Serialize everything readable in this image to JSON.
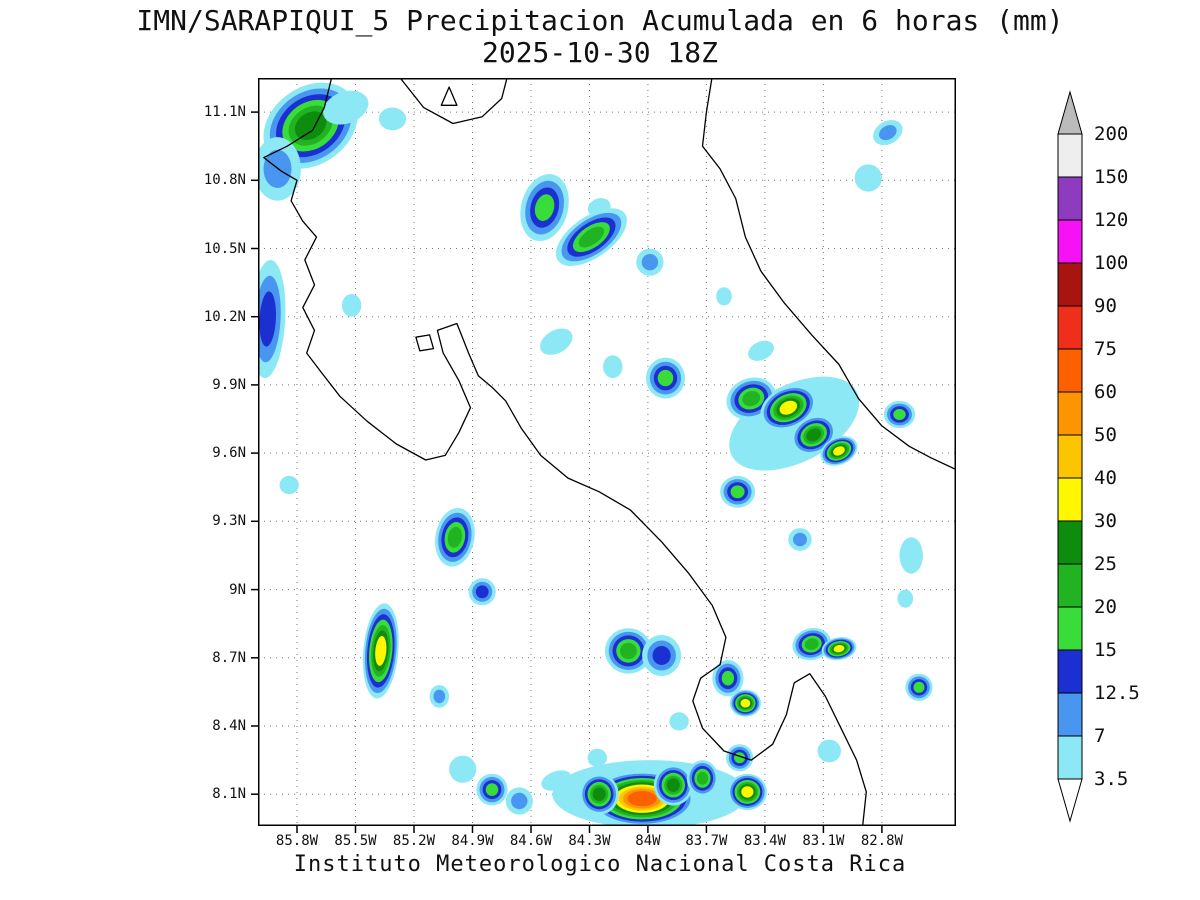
{
  "title": {
    "line1": "IMN/SARAPIQUI_5 Precipitacion Acumulada en 6 horas (mm)",
    "line2": "2025-10-30 18Z"
  },
  "footer": "Instituto Meteorologico Nacional Costa Rica",
  "colorbar": {
    "boundary_labels": [
      "200",
      "150",
      "120",
      "100",
      "90",
      "75",
      "60",
      "50",
      "40",
      "30",
      "25",
      "20",
      "15",
      "12.5",
      "7",
      "3.5"
    ],
    "above_color": "#bbbbbb",
    "below_color": "#ffffff"
  },
  "chart_data": {
    "type": "heatmap",
    "title": "IMN/SARAPIQUI_5 Precipitacion Acumulada en 6 horas (mm)",
    "subtitle": "2025-10-30 18Z",
    "units": "mm",
    "region": "Costa Rica",
    "axes": {
      "lat_labels": [
        "11.1N",
        "10.8N",
        "10.5N",
        "10.2N",
        "9.9N",
        "9.6N",
        "9.3N",
        "9N",
        "8.7N",
        "8.4N",
        "8.1N"
      ],
      "lat_values": [
        11.1,
        10.8,
        10.5,
        10.2,
        9.9,
        9.6,
        9.3,
        9.0,
        8.7,
        8.4,
        8.1
      ],
      "lon_labels": [
        "85.8W",
        "85.5W",
        "85.2W",
        "84.9W",
        "84.6W",
        "84.3W",
        "84W",
        "83.7W",
        "83.4W",
        "83.1W",
        "82.8W"
      ],
      "lon_values": [
        85.8,
        85.5,
        85.2,
        84.9,
        84.6,
        84.3,
        84.0,
        83.7,
        83.4,
        83.1,
        82.8
      ],
      "lon_range": [
        86.0,
        82.42
      ],
      "lat_range": [
        7.96,
        11.25
      ],
      "grid": "dotted"
    },
    "levels": [
      3.5,
      7,
      12.5,
      15,
      20,
      25,
      30,
      40,
      50,
      60,
      75,
      90,
      100,
      120,
      150,
      200
    ],
    "level_colors": [
      "#8ce8f5",
      "#4996f0",
      "#1c2fd1",
      "#39dd3a",
      "#22b322",
      "#0e8c0e",
      "#fdf800",
      "#fcc500",
      "#fd9500",
      "#fb6100",
      "#ef2f1c",
      "#a81410",
      "#f513f5",
      "#8f3bbf",
      "#eeeeee"
    ],
    "cell_format": [
      "lon_w",
      "lat",
      "max_mm",
      "rx_deg",
      "ry_deg",
      "rot_deg"
    ],
    "cells": [
      [
        85.73,
        11.04,
        30,
        0.26,
        0.17,
        -35
      ],
      [
        85.9,
        10.85,
        12.5,
        0.12,
        0.14,
        0
      ],
      [
        85.55,
        11.12,
        7,
        0.12,
        0.07,
        -20
      ],
      [
        85.31,
        11.07,
        7,
        0.07,
        0.05,
        0
      ],
      [
        82.77,
        11.01,
        12.5,
        0.08,
        0.05,
        -30
      ],
      [
        82.87,
        10.81,
        7,
        0.07,
        0.06,
        0
      ],
      [
        84.53,
        10.68,
        20,
        0.12,
        0.15,
        15
      ],
      [
        84.25,
        10.68,
        7,
        0.06,
        0.04,
        -20
      ],
      [
        84.29,
        10.55,
        25,
        0.21,
        0.09,
        -35
      ],
      [
        83.99,
        10.44,
        12.5,
        0.07,
        0.06,
        0
      ],
      [
        85.95,
        10.19,
        15,
        0.09,
        0.26,
        3
      ],
      [
        85.52,
        10.25,
        7,
        0.05,
        0.05,
        0
      ],
      [
        84.47,
        10.09,
        7,
        0.09,
        0.05,
        -30
      ],
      [
        84.18,
        9.98,
        7,
        0.05,
        0.05,
        0
      ],
      [
        83.91,
        9.93,
        20,
        0.1,
        0.09,
        0
      ],
      [
        83.25,
        9.73,
        7,
        0.36,
        0.17,
        -27
      ],
      [
        83.47,
        9.84,
        25,
        0.13,
        0.09,
        -20
      ],
      [
        83.28,
        9.8,
        40,
        0.15,
        0.09,
        -25
      ],
      [
        83.15,
        9.68,
        30,
        0.12,
        0.08,
        -30
      ],
      [
        83.02,
        9.61,
        40,
        0.1,
        0.06,
        -25
      ],
      [
        82.71,
        9.77,
        20,
        0.08,
        0.06,
        0
      ],
      [
        83.42,
        10.05,
        7,
        0.07,
        0.04,
        -25
      ],
      [
        83.61,
        10.29,
        7,
        0.04,
        0.04,
        0
      ],
      [
        83.54,
        9.43,
        20,
        0.09,
        0.07,
        0
      ],
      [
        83.22,
        9.22,
        12.5,
        0.06,
        0.05,
        0
      ],
      [
        82.65,
        9.15,
        7,
        0.06,
        0.08,
        0
      ],
      [
        84.99,
        9.23,
        25,
        0.1,
        0.13,
        10
      ],
      [
        85.84,
        9.46,
        7,
        0.05,
        0.04,
        0
      ],
      [
        84.85,
        8.99,
        15,
        0.07,
        0.06,
        0
      ],
      [
        85.37,
        8.73,
        40,
        0.09,
        0.21,
        5
      ],
      [
        85.07,
        8.53,
        12.5,
        0.05,
        0.05,
        0
      ],
      [
        84.1,
        8.73,
        25,
        0.12,
        0.1,
        0
      ],
      [
        83.93,
        8.71,
        15,
        0.1,
        0.09,
        0
      ],
      [
        83.59,
        8.61,
        20,
        0.08,
        0.08,
        0
      ],
      [
        83.5,
        8.5,
        40,
        0.08,
        0.06,
        0
      ],
      [
        83.16,
        8.76,
        25,
        0.1,
        0.07,
        -15
      ],
      [
        83.02,
        8.74,
        40,
        0.09,
        0.05,
        -10
      ],
      [
        82.61,
        8.57,
        20,
        0.07,
        0.06,
        0
      ],
      [
        83.07,
        8.29,
        7,
        0.06,
        0.05,
        0
      ],
      [
        83.99,
        8.1,
        7,
        0.5,
        0.15,
        0
      ],
      [
        84.03,
        8.08,
        75,
        0.27,
        0.12,
        0
      ],
      [
        84.25,
        8.1,
        30,
        0.1,
        0.09,
        0
      ],
      [
        83.87,
        8.14,
        30,
        0.1,
        0.09,
        0
      ],
      [
        83.72,
        8.17,
        25,
        0.08,
        0.08,
        0
      ],
      [
        83.53,
        8.26,
        20,
        0.07,
        0.06,
        0
      ],
      [
        83.49,
        8.11,
        40,
        0.1,
        0.08,
        0
      ],
      [
        84.95,
        8.21,
        7,
        0.07,
        0.06,
        0
      ],
      [
        84.8,
        8.12,
        20,
        0.08,
        0.07,
        0
      ],
      [
        84.66,
        8.07,
        12.5,
        0.07,
        0.06,
        0
      ],
      [
        84.47,
        8.16,
        7,
        0.08,
        0.04,
        -20
      ],
      [
        84.26,
        8.26,
        7,
        0.05,
        0.04,
        0
      ],
      [
        83.84,
        8.42,
        7,
        0.05,
        0.04,
        0
      ],
      [
        82.68,
        8.96,
        7,
        0.04,
        0.04,
        0
      ]
    ],
    "coastline": [
      {
        "name": "pacific-coast",
        "closed": false,
        "points": [
          [
            85.62,
            11.26
          ],
          [
            85.66,
            11.12
          ],
          [
            85.72,
            11.02
          ],
          [
            85.85,
            10.95
          ],
          [
            85.97,
            10.9
          ],
          [
            85.88,
            10.84
          ],
          [
            85.8,
            10.8
          ],
          [
            85.83,
            10.71
          ],
          [
            85.77,
            10.62
          ],
          [
            85.7,
            10.55
          ],
          [
            85.76,
            10.45
          ],
          [
            85.71,
            10.34
          ],
          [
            85.77,
            10.24
          ],
          [
            85.71,
            10.14
          ],
          [
            85.75,
            10.04
          ],
          [
            85.67,
            9.95
          ],
          [
            85.58,
            9.85
          ],
          [
            85.44,
            9.74
          ],
          [
            85.29,
            9.64
          ],
          [
            85.14,
            9.57
          ],
          [
            85.04,
            9.59
          ],
          [
            84.97,
            9.69
          ],
          [
            84.91,
            9.8
          ],
          [
            84.97,
            9.92
          ],
          [
            85.05,
            10.04
          ],
          [
            85.08,
            10.14
          ],
          [
            84.98,
            10.17
          ],
          [
            84.92,
            10.04
          ],
          [
            84.87,
            9.94
          ],
          [
            84.8,
            9.89
          ],
          [
            84.73,
            9.83
          ],
          [
            84.65,
            9.71
          ],
          [
            84.55,
            9.59
          ],
          [
            84.41,
            9.49
          ],
          [
            84.25,
            9.43
          ],
          [
            84.09,
            9.35
          ],
          [
            83.93,
            9.21
          ],
          [
            83.79,
            9.07
          ],
          [
            83.67,
            8.93
          ],
          [
            83.6,
            8.79
          ],
          [
            83.63,
            8.67
          ],
          [
            83.73,
            8.61
          ],
          [
            83.77,
            8.51
          ],
          [
            83.72,
            8.39
          ],
          [
            83.61,
            8.29
          ],
          [
            83.47,
            8.25
          ],
          [
            83.36,
            8.32
          ],
          [
            83.29,
            8.45
          ],
          [
            83.25,
            8.59
          ],
          [
            83.17,
            8.63
          ],
          [
            83.09,
            8.53
          ],
          [
            83.01,
            8.39
          ],
          [
            82.93,
            8.25
          ],
          [
            82.88,
            8.11
          ],
          [
            82.9,
            7.95
          ]
        ]
      },
      {
        "name": "caribbean-coast",
        "closed": false,
        "points": [
          [
            83.67,
            11.26
          ],
          [
            83.7,
            11.1
          ],
          [
            83.72,
            10.95
          ],
          [
            83.63,
            10.85
          ],
          [
            83.55,
            10.72
          ],
          [
            83.5,
            10.55
          ],
          [
            83.42,
            10.4
          ],
          [
            83.3,
            10.26
          ],
          [
            83.16,
            10.12
          ],
          [
            83.02,
            9.99
          ],
          [
            82.92,
            9.84
          ],
          [
            82.8,
            9.72
          ],
          [
            82.66,
            9.63
          ],
          [
            82.55,
            9.58
          ],
          [
            82.4,
            9.52
          ]
        ]
      },
      {
        "name": "lake-nicaragua-shore",
        "closed": false,
        "points": [
          [
            85.28,
            11.26
          ],
          [
            85.15,
            11.12
          ],
          [
            85.0,
            11.05
          ],
          [
            84.85,
            11.08
          ],
          [
            84.75,
            11.16
          ],
          [
            84.72,
            11.26
          ]
        ]
      },
      {
        "name": "lake-island",
        "closed": true,
        "points": [
          [
            85.02,
            11.21
          ],
          [
            85.06,
            11.13
          ],
          [
            84.98,
            11.13
          ]
        ]
      },
      {
        "name": "chira-island",
        "closed": true,
        "points": [
          [
            85.19,
            10.11
          ],
          [
            85.12,
            10.12
          ],
          [
            85.1,
            10.06
          ],
          [
            85.17,
            10.05
          ]
        ]
      }
    ]
  }
}
